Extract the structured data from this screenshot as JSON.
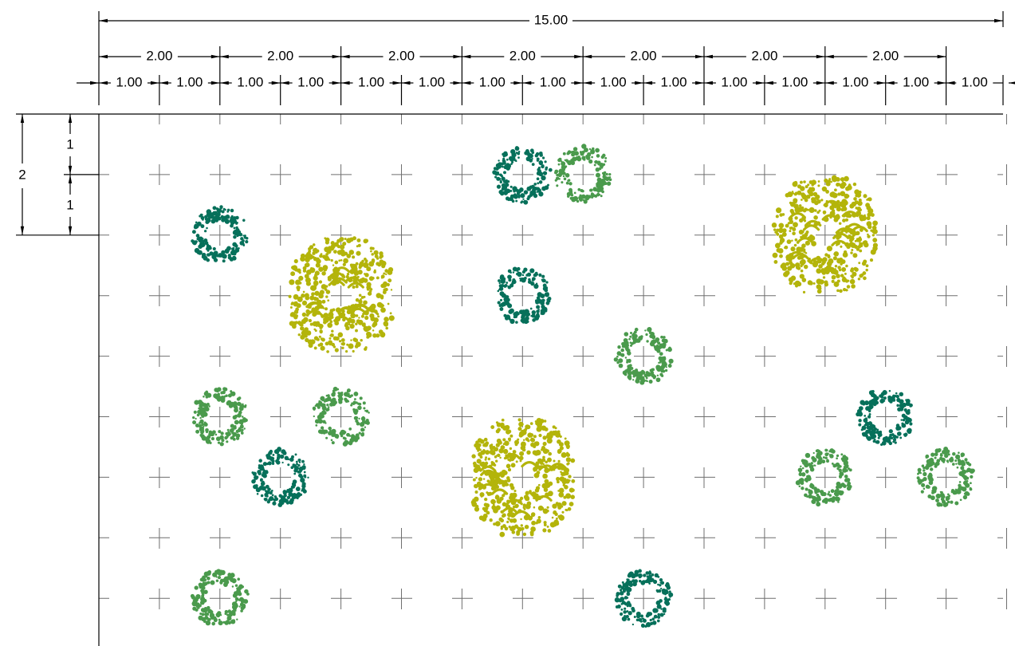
{
  "colors": {
    "teal": "#06705a",
    "green": "#4a9a4c",
    "olive": "#b3b40a",
    "dimension": "#000000",
    "grid": "#6f6f6f"
  },
  "dimensions": {
    "overall": "15.00",
    "two_unit": [
      "2.00",
      "2.00",
      "2.00",
      "2.00",
      "2.00",
      "2.00",
      "2.00"
    ],
    "one_unit": [
      "1.00",
      "1.00",
      "1.00",
      "1.00",
      "1.00",
      "1.00",
      "1.00",
      "1.00",
      "1.00",
      "1.00",
      "1.00",
      "1.00",
      "1.00",
      "1.00",
      "1.00"
    ],
    "vertical_total": "2",
    "vertical_parts": [
      "1",
      "1"
    ]
  },
  "plants": [
    {
      "kind": "teal-shrub",
      "color": "teal",
      "gx": 2,
      "gy": 2
    },
    {
      "kind": "olive-tree",
      "color": "olive",
      "gx": 4,
      "gy": 3
    },
    {
      "kind": "green-shrub",
      "color": "green",
      "gx": 2,
      "gy": 5
    },
    {
      "kind": "green-shrub",
      "color": "green",
      "gx": 4,
      "gy": 5
    },
    {
      "kind": "teal-shrub",
      "color": "teal",
      "gx": 3,
      "gy": 6
    },
    {
      "kind": "green-shrub",
      "color": "green",
      "gx": 2,
      "gy": 8
    },
    {
      "kind": "teal-shrub",
      "color": "teal",
      "gx": 7,
      "gy": 1
    },
    {
      "kind": "green-shrub",
      "color": "green",
      "gx": 8,
      "gy": 1
    },
    {
      "kind": "teal-shrub",
      "color": "teal",
      "gx": 7,
      "gy": 3
    },
    {
      "kind": "green-shrub",
      "color": "green",
      "gx": 9,
      "gy": 4
    },
    {
      "kind": "olive-tree",
      "color": "olive",
      "gx": 7,
      "gy": 6
    },
    {
      "kind": "teal-shrub",
      "color": "teal",
      "gx": 9,
      "gy": 8
    },
    {
      "kind": "olive-tree",
      "color": "olive",
      "gx": 12,
      "gy": 2
    },
    {
      "kind": "teal-shrub",
      "color": "teal",
      "gx": 13,
      "gy": 5
    },
    {
      "kind": "green-shrub",
      "color": "green",
      "gx": 12,
      "gy": 6
    },
    {
      "kind": "green-shrub",
      "color": "green",
      "gx": 14,
      "gy": 6
    }
  ]
}
